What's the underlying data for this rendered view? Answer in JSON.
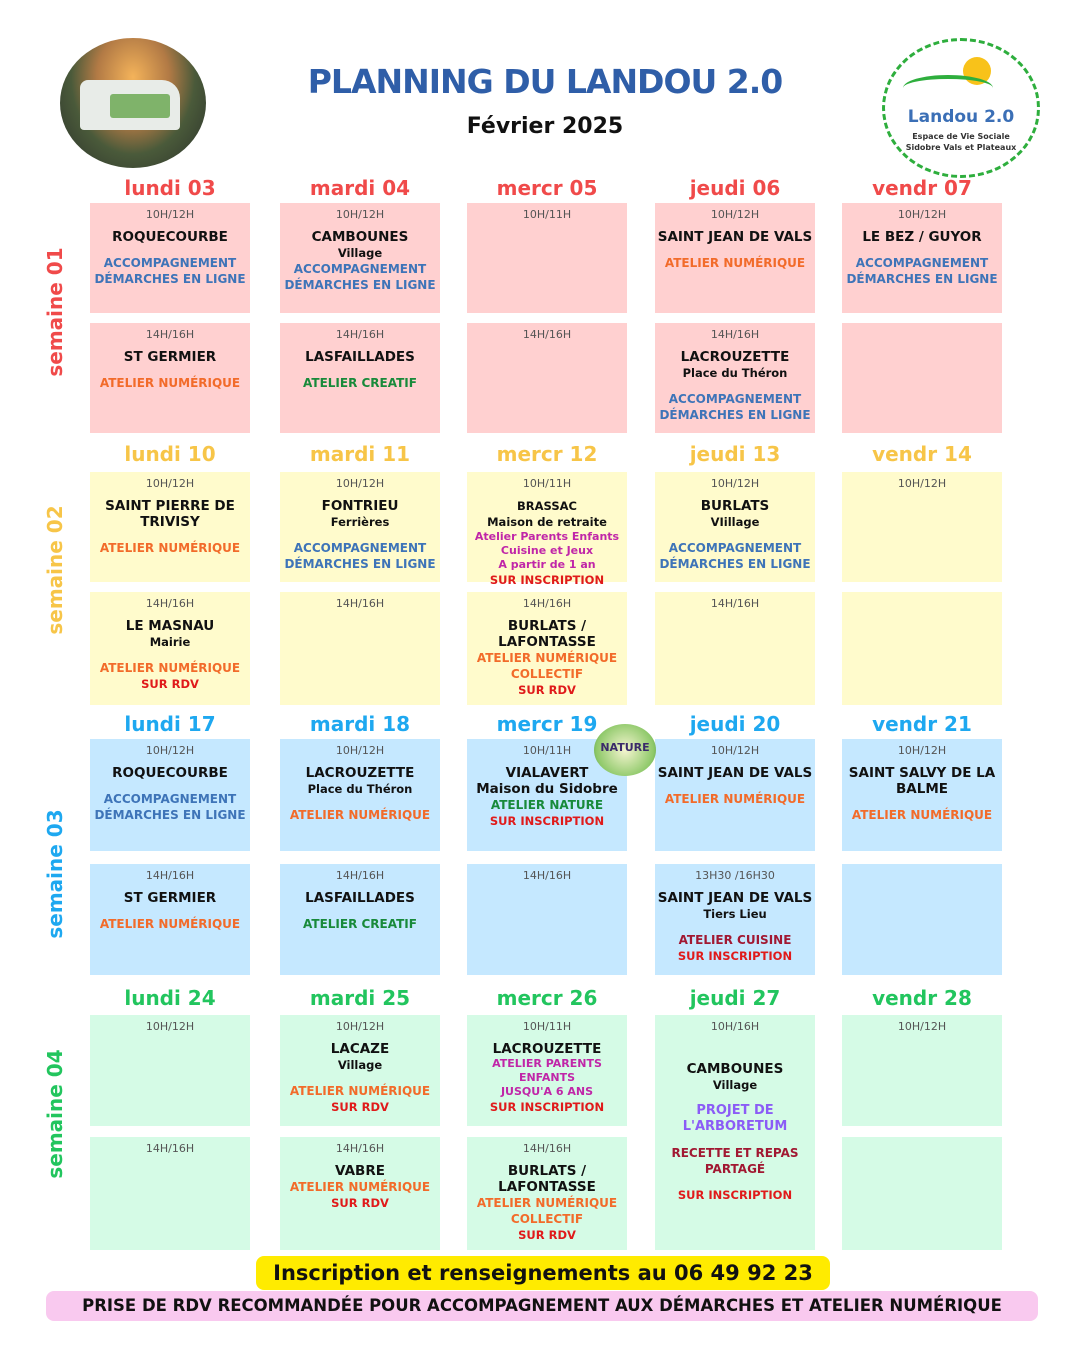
{
  "header": {
    "title": "PLANNING DU LANDOU 2.0",
    "subtitle": "Février 2025"
  },
  "logo": {
    "name": "Landou 2.0",
    "tagline1": "Espace de Vie Sociale",
    "tagline2": "Sidobre Vals et Plateaux"
  },
  "nature_badge": "NATURE",
  "colors": {
    "week1_bg": "#ffd0d0",
    "week2_bg": "#fffbcc",
    "week3_bg": "#c5e8ff",
    "week4_bg": "#d5fbe6",
    "week1": "#f04a4a",
    "week2": "#f7c548",
    "week3": "#1ea8f0",
    "week4": "#22c55e"
  },
  "weeks": [
    {
      "label": "semaine 01",
      "days": [
        {
          "label": "lundi 03",
          "slots": [
            {
              "time": "10H/12H",
              "lines": [
                {
                  "text": "ROQUECOURBE",
                  "style": "place"
                },
                {
                  "text": "",
                  "style": "gap"
                },
                {
                  "text": "ACCOMPAGNEMENT",
                  "style": "blue"
                },
                {
                  "text": "DÉMARCHES EN LIGNE",
                  "style": "blue"
                }
              ]
            },
            {
              "time": "14H/16H",
              "lines": [
                {
                  "text": "ST GERMIER",
                  "style": "place"
                },
                {
                  "text": "",
                  "style": "gap"
                },
                {
                  "text": "ATELIER NUMÉRIQUE",
                  "style": "orange"
                }
              ]
            }
          ]
        },
        {
          "label": "mardi 04",
          "slots": [
            {
              "time": "10H/12H",
              "lines": [
                {
                  "text": "CAMBOUNES",
                  "style": "place"
                },
                {
                  "text": "Village",
                  "style": "sub"
                },
                {
                  "text": "ACCOMPAGNEMENT",
                  "style": "blue"
                },
                {
                  "text": "DÉMARCHES EN LIGNE",
                  "style": "blue"
                }
              ]
            },
            {
              "time": "14H/16H",
              "lines": [
                {
                  "text": "LASFAILLADES",
                  "style": "place"
                },
                {
                  "text": "",
                  "style": "gap"
                },
                {
                  "text": "ATELIER CREATIF",
                  "style": "green"
                }
              ]
            }
          ]
        },
        {
          "label": "mercr 05",
          "slots": [
            {
              "time": "10H/11H",
              "lines": []
            },
            {
              "time": "14H/16H",
              "lines": []
            }
          ]
        },
        {
          "label": "jeudi 06",
          "slots": [
            {
              "time": "10H/12H",
              "lines": [
                {
                  "text": "SAINT JEAN DE VALS",
                  "style": "place"
                },
                {
                  "text": "",
                  "style": "gap"
                },
                {
                  "text": "ATELIER NUMÉRIQUE",
                  "style": "orange"
                }
              ]
            },
            {
              "time": "14H/16H",
              "lines": [
                {
                  "text": "LACROUZETTE",
                  "style": "place"
                },
                {
                  "text": "Place du Théron",
                  "style": "sub"
                },
                {
                  "text": "",
                  "style": "gap"
                },
                {
                  "text": "ACCOMPAGNEMENT",
                  "style": "blue"
                },
                {
                  "text": "DÉMARCHES EN LIGNE",
                  "style": "blue"
                }
              ]
            }
          ]
        },
        {
          "label": "vendr 07",
          "slots": [
            {
              "time": "10H/12H",
              "lines": [
                {
                  "text": "LE BEZ / GUYOR",
                  "style": "place"
                },
                {
                  "text": "",
                  "style": "gap"
                },
                {
                  "text": "ACCOMPAGNEMENT",
                  "style": "blue"
                },
                {
                  "text": "DÉMARCHES EN LIGNE",
                  "style": "blue"
                }
              ]
            },
            {
              "time": "",
              "lines": []
            }
          ]
        }
      ]
    },
    {
      "label": "semaine 02",
      "days": [
        {
          "label": "lundi 10",
          "slots": [
            {
              "time": "10H/12H",
              "lines": [
                {
                  "text": "SAINT PIERRE DE",
                  "style": "place"
                },
                {
                  "text": "TRIVISY",
                  "style": "place"
                },
                {
                  "text": "",
                  "style": "gap"
                },
                {
                  "text": "ATELIER NUMÉRIQUE",
                  "style": "orange"
                }
              ]
            },
            {
              "time": "14H/16H",
              "lines": [
                {
                  "text": "LE MASNAU",
                  "style": "place"
                },
                {
                  "text": "Mairie",
                  "style": "sub"
                },
                {
                  "text": "",
                  "style": "gap"
                },
                {
                  "text": "ATELIER NUMÉRIQUE",
                  "style": "orange"
                },
                {
                  "text": "SUR RDV",
                  "style": "red"
                }
              ]
            }
          ]
        },
        {
          "label": "mardi 11",
          "slots": [
            {
              "time": "10H/12H",
              "lines": [
                {
                  "text": "FONTRIEU",
                  "style": "place"
                },
                {
                  "text": "Ferrières",
                  "style": "sub"
                },
                {
                  "text": "",
                  "style": "gap"
                },
                {
                  "text": "ACCOMPAGNEMENT",
                  "style": "blue"
                },
                {
                  "text": "DÉMARCHES EN LIGNE",
                  "style": "blue"
                }
              ]
            },
            {
              "time": "14H/16H",
              "lines": []
            }
          ]
        },
        {
          "label": "mercr 12",
          "slots": [
            {
              "time": "10H/11H",
              "lines": [
                {
                  "text": "BRASSAC",
                  "style": "sub"
                },
                {
                  "text": "Maison de retraite",
                  "style": "magsub"
                },
                {
                  "text": "Atelier Parents Enfants",
                  "style": "magenta"
                },
                {
                  "text": "Cuisine et Jeux",
                  "style": "magenta"
                },
                {
                  "text": "A partir de 1 an",
                  "style": "magenta"
                },
                {
                  "text": "SUR INSCRIPTION",
                  "style": "red"
                }
              ]
            },
            {
              "time": "14H/16H",
              "lines": [
                {
                  "text": "BURLATS /",
                  "style": "place"
                },
                {
                  "text": "LAFONTASSE",
                  "style": "place"
                },
                {
                  "text": "ATELIER NUMÉRIQUE",
                  "style": "orange"
                },
                {
                  "text": "COLLECTIF",
                  "style": "orange"
                },
                {
                  "text": "SUR RDV",
                  "style": "red"
                }
              ]
            }
          ]
        },
        {
          "label": "jeudi 13",
          "slots": [
            {
              "time": "10H/12H",
              "lines": [
                {
                  "text": "BURLATS",
                  "style": "place"
                },
                {
                  "text": "VIillage",
                  "style": "sub"
                },
                {
                  "text": "",
                  "style": "gap"
                },
                {
                  "text": "ACCOMPAGNEMENT",
                  "style": "blue"
                },
                {
                  "text": "DÉMARCHES EN LIGNE",
                  "style": "blue"
                }
              ]
            },
            {
              "time": "14H/16H",
              "lines": []
            }
          ]
        },
        {
          "label": "vendr 14",
          "slots": [
            {
              "time": "10H/12H",
              "lines": []
            },
            {
              "time": "",
              "lines": []
            }
          ]
        }
      ]
    },
    {
      "label": "semaine 03",
      "days": [
        {
          "label": "lundi 17",
          "slots": [
            {
              "time": "10H/12H",
              "lines": [
                {
                  "text": "ROQUECOURBE",
                  "style": "place"
                },
                {
                  "text": "",
                  "style": "gap"
                },
                {
                  "text": "ACCOMPAGNEMENT",
                  "style": "blue"
                },
                {
                  "text": "DÉMARCHES EN LIGNE",
                  "style": "blue"
                }
              ]
            },
            {
              "time": "14H/16H",
              "lines": [
                {
                  "text": "ST GERMIER",
                  "style": "place"
                },
                {
                  "text": "",
                  "style": "gap"
                },
                {
                  "text": "ATELIER NUMÉRIQUE",
                  "style": "orange"
                }
              ]
            }
          ]
        },
        {
          "label": "mardi 18",
          "slots": [
            {
              "time": "10H/12H",
              "lines": [
                {
                  "text": "LACROUZETTE",
                  "style": "place"
                },
                {
                  "text": "Place du Théron",
                  "style": "sub"
                },
                {
                  "text": "",
                  "style": "gap"
                },
                {
                  "text": "ATELIER NUMÉRIQUE",
                  "style": "orange"
                }
              ]
            },
            {
              "time": "14H/16H",
              "lines": [
                {
                  "text": "LASFAILLADES",
                  "style": "place"
                },
                {
                  "text": "",
                  "style": "gap"
                },
                {
                  "text": "ATELIER CREATIF",
                  "style": "green"
                }
              ]
            }
          ]
        },
        {
          "label": "mercr 19",
          "slots": [
            {
              "time": "10H/11H",
              "lines": [
                {
                  "text": "VIALAVERT",
                  "style": "place"
                },
                {
                  "text": "Maison du Sidobre",
                  "style": "place"
                },
                {
                  "text": "ATELIER NATURE",
                  "style": "green"
                },
                {
                  "text": "SUR INSCRIPTION",
                  "style": "red"
                }
              ]
            },
            {
              "time": "14H/16H",
              "lines": []
            }
          ]
        },
        {
          "label": "jeudi 20",
          "slots": [
            {
              "time": "10H/12H",
              "lines": [
                {
                  "text": "SAINT JEAN DE VALS",
                  "style": "place"
                },
                {
                  "text": "",
                  "style": "gap"
                },
                {
                  "text": "ATELIER NUMÉRIQUE",
                  "style": "orange"
                }
              ]
            },
            {
              "time": "13H30 /16H30",
              "lines": [
                {
                  "text": "SAINT JEAN DE VALS",
                  "style": "place"
                },
                {
                  "text": "Tiers Lieu",
                  "style": "sub"
                },
                {
                  "text": "",
                  "style": "gap"
                },
                {
                  "text": "ATELIER CUISINE",
                  "style": "dred"
                },
                {
                  "text": "SUR INSCRIPTION",
                  "style": "red"
                }
              ]
            }
          ]
        },
        {
          "label": "vendr 21",
          "slots": [
            {
              "time": "10H/12H",
              "lines": [
                {
                  "text": "SAINT SALVY DE LA",
                  "style": "place"
                },
                {
                  "text": "BALME",
                  "style": "place"
                },
                {
                  "text": "",
                  "style": "gap"
                },
                {
                  "text": "ATELIER NUMÉRIQUE",
                  "style": "orange"
                }
              ]
            },
            {
              "time": "",
              "lines": []
            }
          ]
        }
      ]
    },
    {
      "label": "semaine 04",
      "days": [
        {
          "label": "lundi 24",
          "slots": [
            {
              "time": "10H/12H",
              "lines": []
            },
            {
              "time": "14H/16H",
              "lines": []
            }
          ]
        },
        {
          "label": "mardi 25",
          "slots": [
            {
              "time": "10H/12H",
              "lines": [
                {
                  "text": "LACAZE",
                  "style": "place"
                },
                {
                  "text": "Village",
                  "style": "sub"
                },
                {
                  "text": "",
                  "style": "gap"
                },
                {
                  "text": "ATELIER NUMÉRIQUE",
                  "style": "orange"
                },
                {
                  "text": "SUR RDV",
                  "style": "red"
                }
              ]
            },
            {
              "time": "14H/16H",
              "lines": [
                {
                  "text": "VABRE",
                  "style": "place"
                },
                {
                  "text": "ATELIER NUMÉRIQUE",
                  "style": "orange"
                },
                {
                  "text": "SUR RDV",
                  "style": "red"
                }
              ]
            }
          ]
        },
        {
          "label": "mercr 26",
          "slots": [
            {
              "time": "10H/11H",
              "lines": [
                {
                  "text": "LACROUZETTE",
                  "style": "place"
                },
                {
                  "text": "ATELIER PARENTS",
                  "style": "magenta"
                },
                {
                  "text": "ENFANTS",
                  "style": "magenta"
                },
                {
                  "text": "JUSQU'A 6 ANS",
                  "style": "magenta"
                },
                {
                  "text": "SUR INSCRIPTION",
                  "style": "red"
                }
              ]
            },
            {
              "time": "14H/16H",
              "lines": [
                {
                  "text": "BURLATS /",
                  "style": "place"
                },
                {
                  "text": "LAFONTASSE",
                  "style": "place"
                },
                {
                  "text": "ATELIER NUMÉRIQUE",
                  "style": "orange"
                },
                {
                  "text": "COLLECTIF",
                  "style": "orange"
                },
                {
                  "text": "SUR RDV",
                  "style": "red"
                }
              ]
            }
          ]
        },
        {
          "label": "jeudi 27",
          "slots": [
            {
              "time": "10H/16H",
              "lines": [
                {
                  "text": "",
                  "style": "gap"
                },
                {
                  "text": "",
                  "style": "gap"
                },
                {
                  "text": "CAMBOUNES",
                  "style": "place"
                },
                {
                  "text": "Village",
                  "style": "sub"
                },
                {
                  "text": "",
                  "style": "gap"
                },
                {
                  "text": "PROJET DE",
                  "style": "purple"
                },
                {
                  "text": "L'ARBORETUM",
                  "style": "purple"
                },
                {
                  "text": "",
                  "style": "gap"
                },
                {
                  "text": "RECETTE ET REPAS",
                  "style": "dred"
                },
                {
                  "text": "PARTAGÉ",
                  "style": "dred"
                },
                {
                  "text": "",
                  "style": "gap"
                },
                {
                  "text": "SUR INSCRIPTION",
                  "style": "red"
                }
              ]
            }
          ]
        },
        {
          "label": "vendr 28",
          "slots": [
            {
              "time": "10H/12H",
              "lines": []
            },
            {
              "time": "",
              "lines": []
            }
          ]
        }
      ]
    }
  ],
  "footer": {
    "contact": "Inscription et renseignements au 06 49 92 23 79",
    "notice": "PRISE DE RDV RECOMMANDÉE POUR ACCOMPAGNEMENT AUX DÉMARCHES ET ATELIER NUMÉRIQUE"
  }
}
